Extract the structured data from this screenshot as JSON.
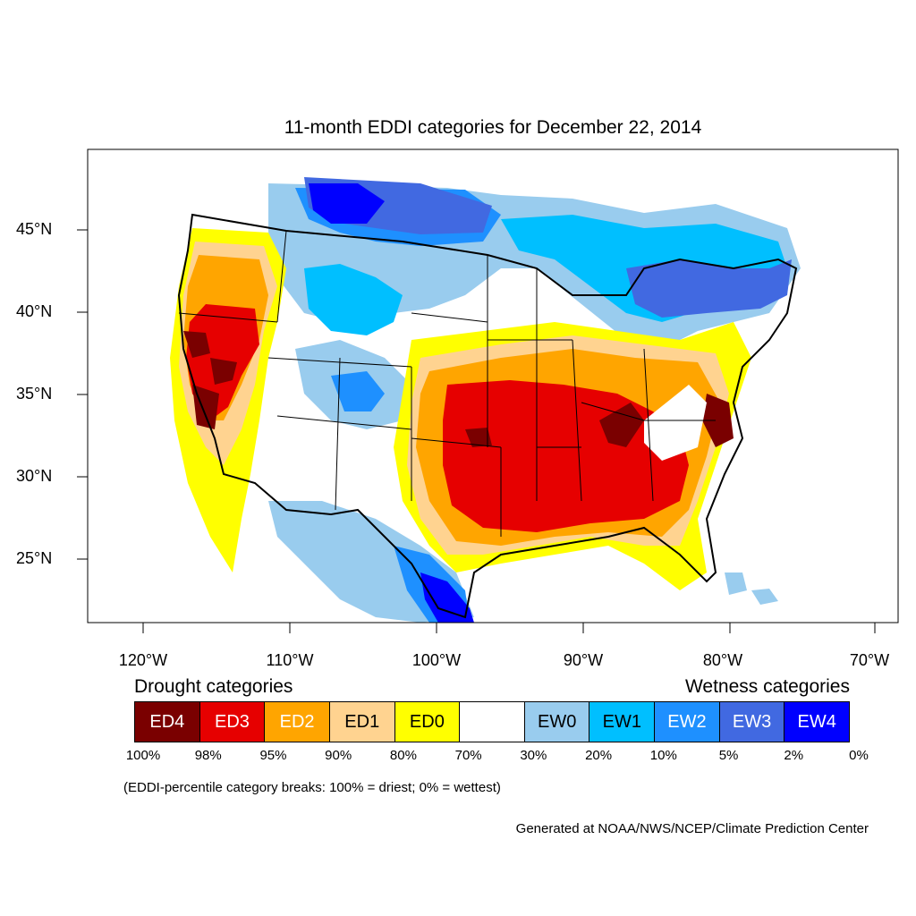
{
  "title": "11-month EDDI categories for December 22, 2014",
  "lat_labels": [
    "45°N",
    "40°N",
    "35°N",
    "30°N",
    "25°N"
  ],
  "lon_labels": [
    "120°W",
    "110°W",
    "100°W",
    "90°W",
    "80°W",
    "70°W"
  ],
  "legend": {
    "drought_heading": "Drought categories",
    "wetness_heading": "Wetness categories",
    "categories": [
      {
        "label": "ED4",
        "color": "#7a0000",
        "text_color": "#ffffff"
      },
      {
        "label": "ED3",
        "color": "#e60000",
        "text_color": "#ffffff"
      },
      {
        "label": "ED2",
        "color": "#ffa500",
        "text_color": "#ffffff"
      },
      {
        "label": "ED1",
        "color": "#ffd390",
        "text_color": "#000000"
      },
      {
        "label": "ED0",
        "color": "#ffff00",
        "text_color": "#000000"
      },
      {
        "label": "",
        "color": "#ffffff",
        "text_color": "#000000"
      },
      {
        "label": "EW0",
        "color": "#99ccee",
        "text_color": "#000000"
      },
      {
        "label": "EW1",
        "color": "#00bfff",
        "text_color": "#000000"
      },
      {
        "label": "EW2",
        "color": "#1e90ff",
        "text_color": "#ffffff"
      },
      {
        "label": "EW3",
        "color": "#4169e1",
        "text_color": "#ffffff"
      },
      {
        "label": "EW4",
        "color": "#0000ff",
        "text_color": "#ffffff"
      }
    ],
    "percentiles": [
      "100%",
      "98%",
      "95%",
      "90%",
      "80%",
      "70%",
      "30%",
      "20%",
      "10%",
      "5%",
      "2%",
      "0%"
    ]
  },
  "note": "(EDDI-percentile category breaks: 100% = driest; 0% = wettest)",
  "credit": "Generated at NOAA/NWS/NCEP/Climate Prediction Center"
}
